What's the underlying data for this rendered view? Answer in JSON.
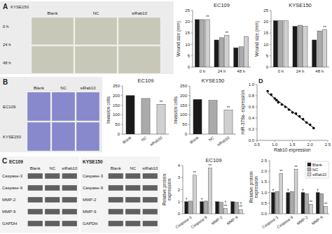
{
  "chart_data": [
    {
      "type": "image",
      "title": "A",
      "subtitle": "KYSE150",
      "categories": [
        "Blank",
        "NC",
        "siRab10"
      ],
      "annotations": [
        "0 h",
        "24 h",
        "48 h"
      ]
    },
    {
      "type": "bar",
      "title": "EC109",
      "ylabel": "Wound size (mm)",
      "categories": [
        "0 h",
        "24 h",
        "48 h"
      ],
      "series": [
        {
          "color": "#1a1a1a",
          "values": [
            21,
            12,
            8.5
          ]
        },
        {
          "color": "#aaaaaa",
          "values": [
            21,
            13,
            9
          ]
        },
        {
          "color": "#d0d0d0",
          "values": [
            21,
            14,
            13.5
          ],
          "annotations": [
            [
              "**"
            ],
            [
              "**"
            ],
            null
          ]
        }
      ],
      "ylim": [
        0,
        25
      ],
      "yticks": [
        0,
        5,
        10,
        15,
        20,
        25
      ]
    },
    {
      "type": "bar",
      "title": "KYSE150",
      "ylabel": "Wound size (mm)",
      "categories": [
        "0 h",
        "24 h",
        "48 h"
      ],
      "series": [
        {
          "color": "#1a1a1a",
          "values": [
            20.5,
            18,
            12
          ]
        },
        {
          "color": "#aaaaaa",
          "values": [
            20.5,
            18.5,
            16
          ]
        },
        {
          "color": "#d0d0d0",
          "values": [
            20.5,
            18,
            16.5
          ],
          "annotations": [
            null,
            null,
            [
              "**"
            ]
          ]
        }
      ],
      "ylim": [
        0,
        25
      ],
      "yticks": [
        0,
        5,
        10,
        15,
        20,
        25
      ]
    },
    {
      "type": "image",
      "title": "B",
      "categories": [
        "Blank",
        "NC",
        "siRab10"
      ],
      "annotations": [
        "EC109",
        "KYSE150"
      ]
    },
    {
      "type": "bar",
      "title": "EC109",
      "ylabel": "Invasion cells",
      "categories": [
        "Blank",
        "NC",
        "siRab10"
      ],
      "series": [
        {
          "colors": [
            "#1a1a1a",
            "#aaaaaa",
            "#d0d0d0"
          ],
          "values": [
            200,
            185,
            155
          ],
          "annotations": [
            null,
            null,
            [
              "**"
            ]
          ]
        }
      ],
      "ylim": [
        0,
        250
      ],
      "yticks": [
        0,
        50,
        100,
        150,
        200,
        250
      ]
    },
    {
      "type": "bar",
      "title": "KYSE150",
      "ylabel": "Invasion cells",
      "categories": [
        "Blank",
        "NC",
        "siRab10"
      ],
      "series": [
        {
          "colors": [
            "#1a1a1a",
            "#aaaaaa",
            "#d0d0d0"
          ],
          "values": [
            180,
            175,
            125
          ],
          "annotations": [
            null,
            null,
            [
              "**"
            ]
          ]
        }
      ],
      "ylim": [
        0,
        250
      ],
      "yticks": [
        0,
        50,
        100,
        150,
        200,
        250
      ]
    },
    {
      "type": "scatter",
      "title": "D",
      "xlabel": "Rab10 expression",
      "ylabel": "miR-378a- expression",
      "x": [
        0.8,
        0.9,
        1.0,
        1.05,
        1.1,
        1.2,
        1.3,
        1.4,
        1.5,
        1.6,
        1.7,
        1.8,
        1.9,
        2.0,
        2.1
      ],
      "series": [
        {
          "type": "scatter",
          "marker": "circle",
          "color": "#000000",
          "values": [
            0.88,
            0.82,
            0.75,
            0.72,
            0.68,
            0.64,
            0.6,
            0.55,
            0.5,
            0.48,
            0.43,
            0.38,
            0.32,
            0.28,
            0.22
          ]
        },
        {
          "type": "line",
          "line_style": "solid",
          "color": "#000000",
          "x": [
            0.8,
            2.1
          ],
          "values": [
            0.8497,
            0.2247
          ]
        }
      ],
      "xlim": [
        0.5,
        2.5
      ],
      "ylim": [
        0,
        1
      ],
      "xticks": [
        0.5,
        {
          "value": 1,
          "label": "1.0"
        },
        1.5,
        {
          "value": 2,
          "label": "2.0"
        },
        2.5
      ],
      "yticks": [
        {
          "value": 0,
          "label": "0.0"
        },
        0.2,
        0.4,
        0.6,
        0.8,
        {
          "value": 1,
          "label": "1.0"
        }
      ]
    },
    {
      "type": "image",
      "title": "C",
      "subtitle": "EC109",
      "categories": [
        "Blank",
        "NC",
        "siRab10"
      ],
      "annotations": [
        "Caspase-3",
        "Caspase-9",
        "MMP-2",
        "MMP-9",
        "GAPDH"
      ]
    },
    {
      "type": "image",
      "subtitle": "KYSE150",
      "categories": [
        "Blank",
        "NC",
        "siRab10"
      ],
      "annotations": [
        "Caspase-3",
        "Caspase-9",
        "MMP-2",
        "MMP-9",
        "GAPDH"
      ]
    },
    {
      "type": "bar",
      "title": "EC109",
      "ylabel": "Relative protein\nexpression",
      "categories": [
        "Caspase-3",
        "Caspase-9",
        "MMP-2",
        "MMP-9"
      ],
      "series": [
        {
          "color": "#1a1a1a",
          "values": [
            1.0,
            1.0,
            1.0,
            1.0
          ],
          "annotations": [
            [
              "†"
            ],
            [
              "†"
            ],
            null,
            null
          ]
        },
        {
          "color": "#aaaaaa",
          "values": [
            1.05,
            1.05,
            0.95,
            0.95
          ]
        },
        {
          "color": "#d0d0d0",
          "values": [
            3.2,
            3.8,
            0.45,
            0.35
          ],
          "annotations": [
            [
              "**"
            ],
            [
              "**"
            ],
            [
              "**",
              "†"
            ],
            [
              "**",
              "†"
            ]
          ]
        }
      ],
      "ylim": [
        0,
        4
      ],
      "yticks": [
        0,
        1,
        2,
        3,
        4
      ]
    },
    {
      "type": "bar",
      "ylabel": "Relative protein\nexpression",
      "categories": [
        "Caspase-3",
        "Caspase-9",
        "MMP-2",
        "MMP-9"
      ],
      "series": [
        {
          "name": "Blank",
          "color": "#1a1a1a",
          "values": [
            1.0,
            1.0,
            1.0,
            1.0
          ],
          "annotations": [
            [
              "†"
            ],
            [
              "†"
            ],
            [
              "†"
            ],
            [
              "†"
            ]
          ]
        },
        {
          "name": "NC",
          "color": "#aaaaaa",
          "values": [
            1.05,
            1.05,
            0.95,
            0.95
          ]
        },
        {
          "name": "siRab10",
          "color": "#d0d0d0",
          "values": [
            1.9,
            2.1,
            0.45,
            0.35
          ],
          "annotations": [
            [
              "**"
            ],
            [
              "**"
            ],
            [
              "**"
            ],
            [
              "**"
            ]
          ]
        }
      ],
      "ylim": [
        0,
        2.5
      ],
      "yticks": [
        {
          "value": 0,
          "label": "0.0"
        },
        0.5,
        {
          "value": 1,
          "label": "1.0"
        },
        1.5,
        {
          "value": 2,
          "label": "2.0"
        },
        2.5
      ],
      "legend": "upper right"
    }
  ]
}
